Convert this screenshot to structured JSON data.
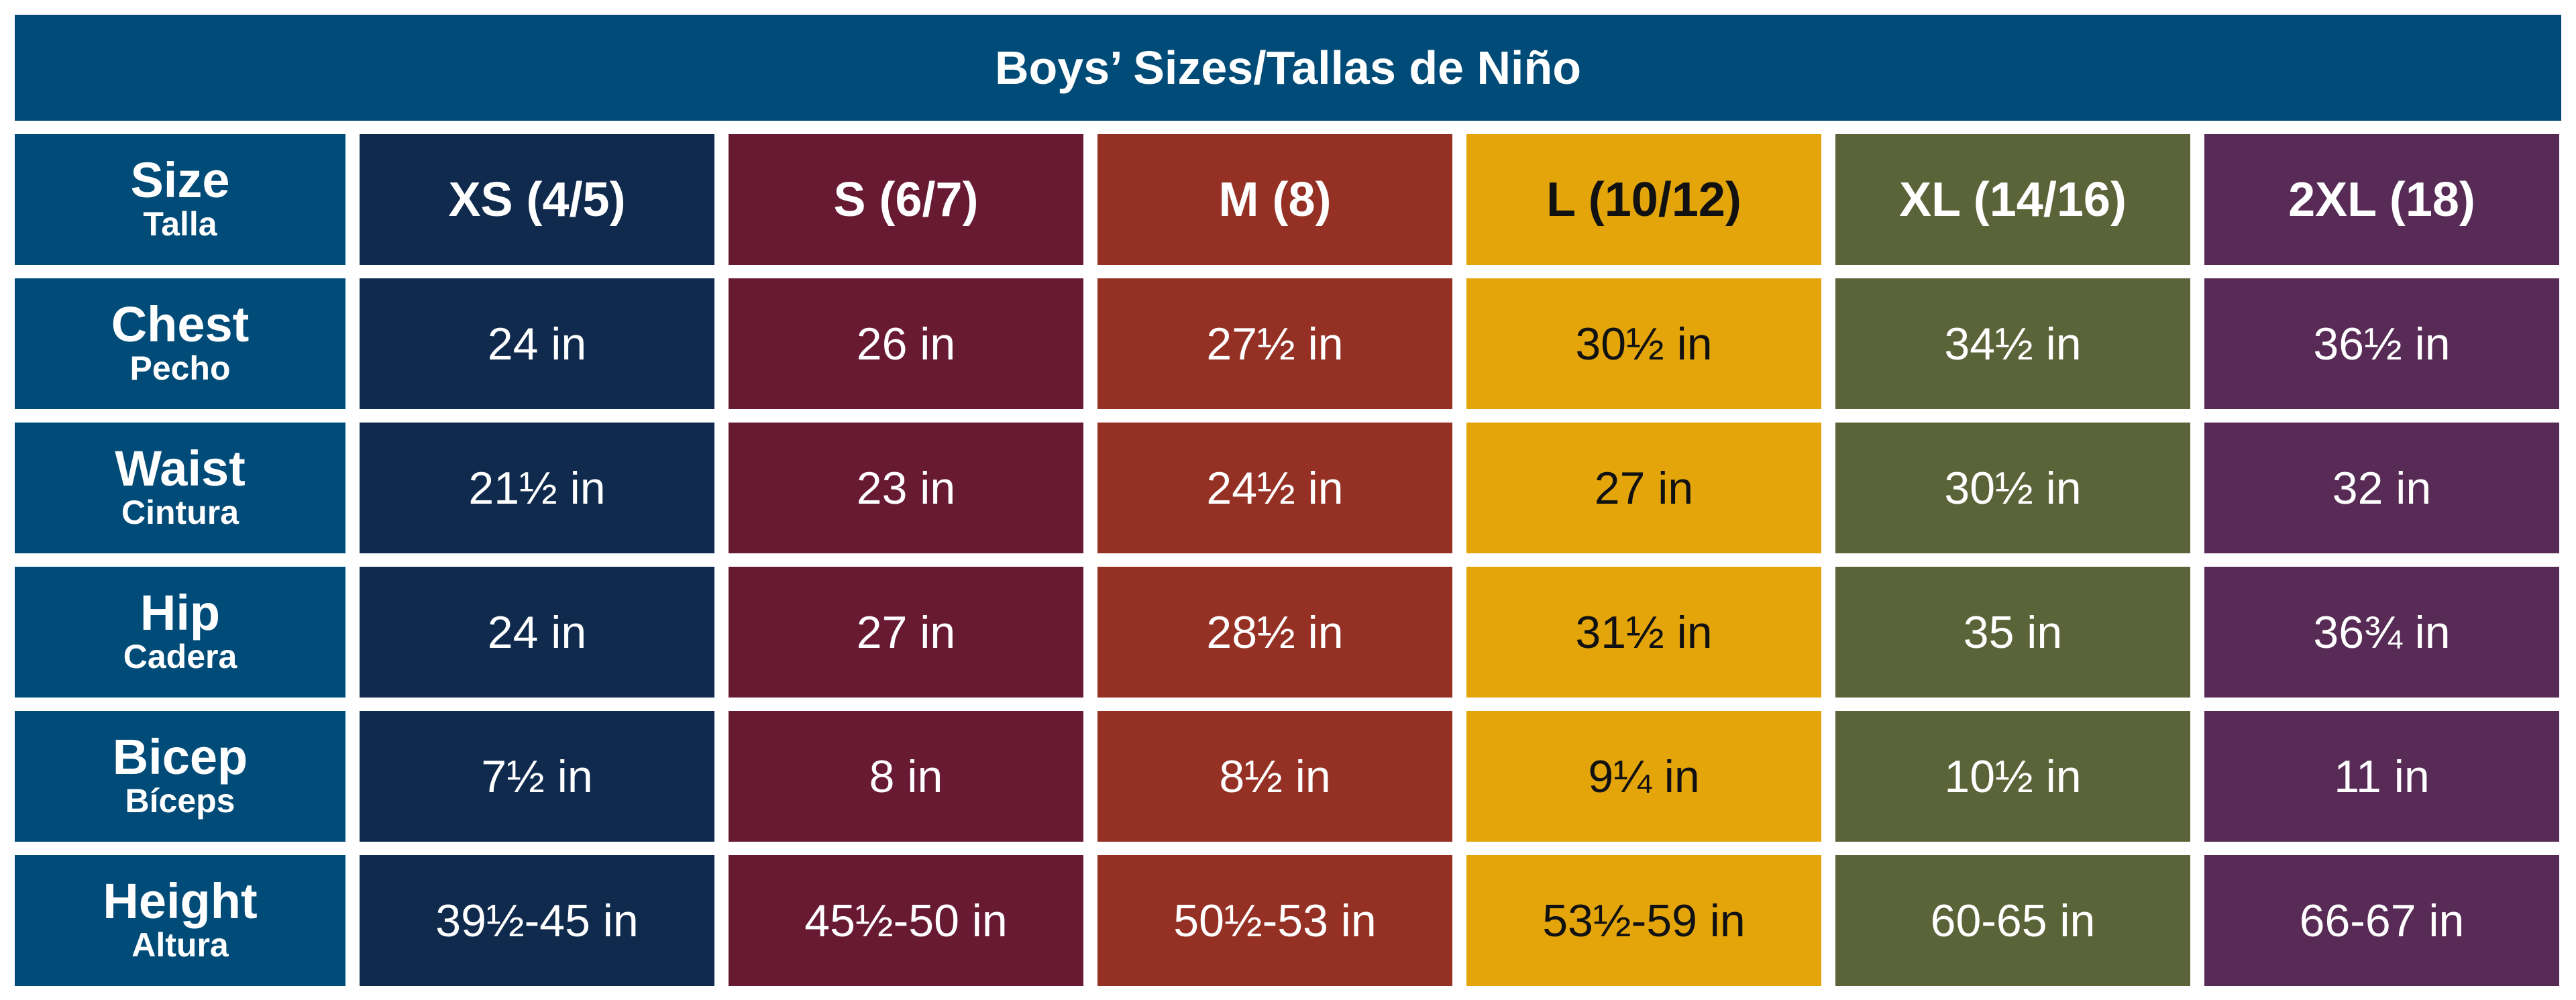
{
  "title": "Boys’ Sizes/Tallas de Niño",
  "corner": {
    "label": "Size",
    "sublabel": "Talla"
  },
  "chart_data": {
    "type": "table",
    "title": "Boys’ Sizes/Tallas de Niño",
    "columns": [
      {
        "label": "XS (4/5)",
        "color": "#0f2a4d",
        "text_color": "#ffffff"
      },
      {
        "label": "S (6/7)",
        "color": "#681a33",
        "text_color": "#ffffff"
      },
      {
        "label": "M (8)",
        "color": "#953124",
        "text_color": "#ffffff"
      },
      {
        "label": "L (10/12)",
        "color": "#e3a50a",
        "text_color": "#111111"
      },
      {
        "label": "XL (14/16)",
        "color": "#5b6438",
        "text_color": "#ffffff"
      },
      {
        "label": "2XL (18)",
        "color": "#572b55",
        "text_color": "#ffffff"
      }
    ],
    "rows": [
      {
        "label": "Chest",
        "sublabel": "Pecho",
        "values": [
          "24 in",
          "26 in",
          "27½ in",
          "30½ in",
          "34½ in",
          "36½ in"
        ]
      },
      {
        "label": "Waist",
        "sublabel": "Cintura",
        "values": [
          "21½ in",
          "23 in",
          "24½ in",
          "27 in",
          "30½ in",
          "32 in"
        ]
      },
      {
        "label": "Hip",
        "sublabel": "Cadera",
        "values": [
          "24 in",
          "27 in",
          "28½ in",
          "31½ in",
          "35 in",
          "36¾ in"
        ]
      },
      {
        "label": "Bicep",
        "sublabel": "Bíceps",
        "values": [
          "7½ in",
          "8 in",
          "8½ in",
          "9¼ in",
          "10½ in",
          "11 in"
        ]
      },
      {
        "label": "Height",
        "sublabel": "Altura",
        "values": [
          "39½-45 in",
          "45½-50 in",
          "50½-53 in",
          "53½-59 in",
          "60-65 in",
          "66-67 in"
        ]
      }
    ]
  },
  "colors": {
    "header_blue": "#004b78"
  }
}
